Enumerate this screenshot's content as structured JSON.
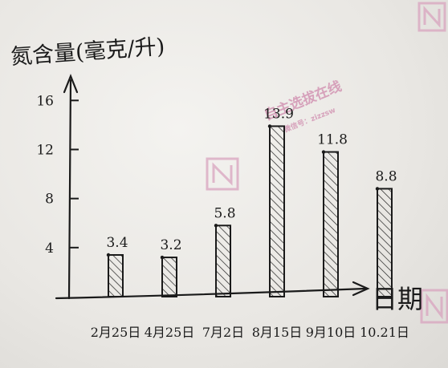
{
  "chart_data": {
    "type": "bar",
    "ylabel": "氮含量(毫克/升)",
    "xlabel": "日期",
    "categories": [
      "2月25日",
      "4月25日",
      "7月2日",
      "8月15日",
      "9月10日",
      "10.21日"
    ],
    "values": [
      3.4,
      3.2,
      5.8,
      13.9,
      11.8,
      8.8
    ],
    "value_labels": [
      "3.4",
      "3.2",
      "5.8",
      "13.9",
      "11.8",
      "8.8"
    ],
    "yticks": [
      4,
      8,
      12,
      16
    ],
    "ylim": [
      0,
      17
    ],
    "grid": false,
    "legend": "none"
  },
  "watermark": {
    "text": "自主选拔在线",
    "subtext": "微信号：zizzsw",
    "color": "#d9a4bf"
  }
}
